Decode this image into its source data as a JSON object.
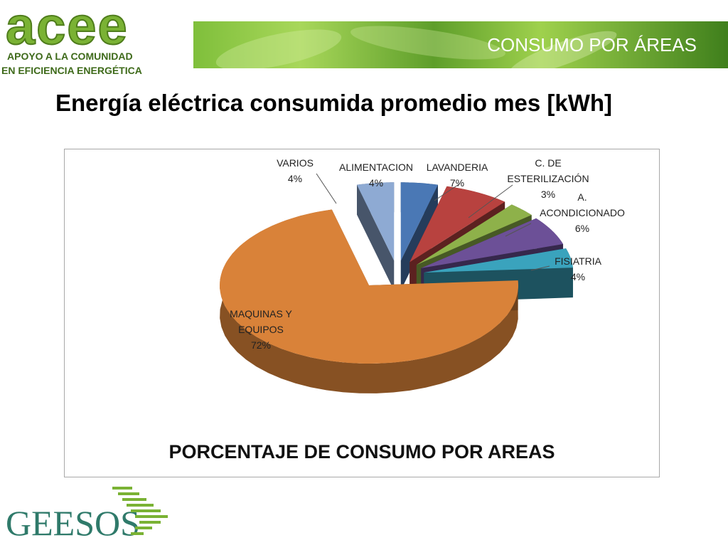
{
  "header": {
    "logo_text": "acee",
    "logo_tagline_1": "APOYO A LA COMUNIDAD",
    "logo_tagline_2": "EN EFICIENCIA ENERGÉTICA",
    "banner_title": "CONSUMO POR ÁREAS"
  },
  "slide_title": "Energía eléctrica consumida promedio mes  [kWh]",
  "chart_data": {
    "type": "pie",
    "title": "PORCENTAJE DE CONSUMO POR AREAS",
    "slices": [
      {
        "name": "VARIOS",
        "value": 4,
        "label": "4%",
        "color": "#8eaad3"
      },
      {
        "name": "ALIMENTACION",
        "value": 4,
        "label": "4%",
        "color": "#4a78b5"
      },
      {
        "name": "LAVANDERIA",
        "value": 7,
        "label": "7%",
        "color": "#b8423f"
      },
      {
        "name": "C. DE ESTERILIZACIÓN",
        "value": 3,
        "label": "3%",
        "color": "#8eb14a"
      },
      {
        "name": "A. ACONDICIONADO",
        "value": 6,
        "label": "6%",
        "color": "#6c5097"
      },
      {
        "name": "FISIATRIA",
        "value": 4,
        "label": "4%",
        "color": "#3aa3bd"
      },
      {
        "name": "MAQUINAS Y EQUIPOS",
        "value": 72,
        "label": "72%",
        "color": "#d98239"
      }
    ],
    "label_lines": {
      "VARIOS": [
        "VARIOS",
        "4%"
      ],
      "ALIMENTACION": [
        "ALIMENTACION",
        "4%"
      ],
      "LAVANDERIA": [
        "LAVANDERIA",
        "7%"
      ],
      "C. DE ESTERILIZACIÓN": [
        "C. DE",
        "ESTERILIZACIÓN",
        "3%"
      ],
      "A. ACONDICIONADO": [
        "A.",
        "ACONDICIONADO",
        "6%"
      ],
      "FISIATRIA": [
        "FISIATRIA",
        "4%"
      ],
      "MAQUINAS Y EQUIPOS": [
        "MAQUINAS Y",
        "EQUIPOS",
        "72%"
      ]
    },
    "legend": "none"
  },
  "footer": {
    "logo_text": "GEESOS"
  }
}
